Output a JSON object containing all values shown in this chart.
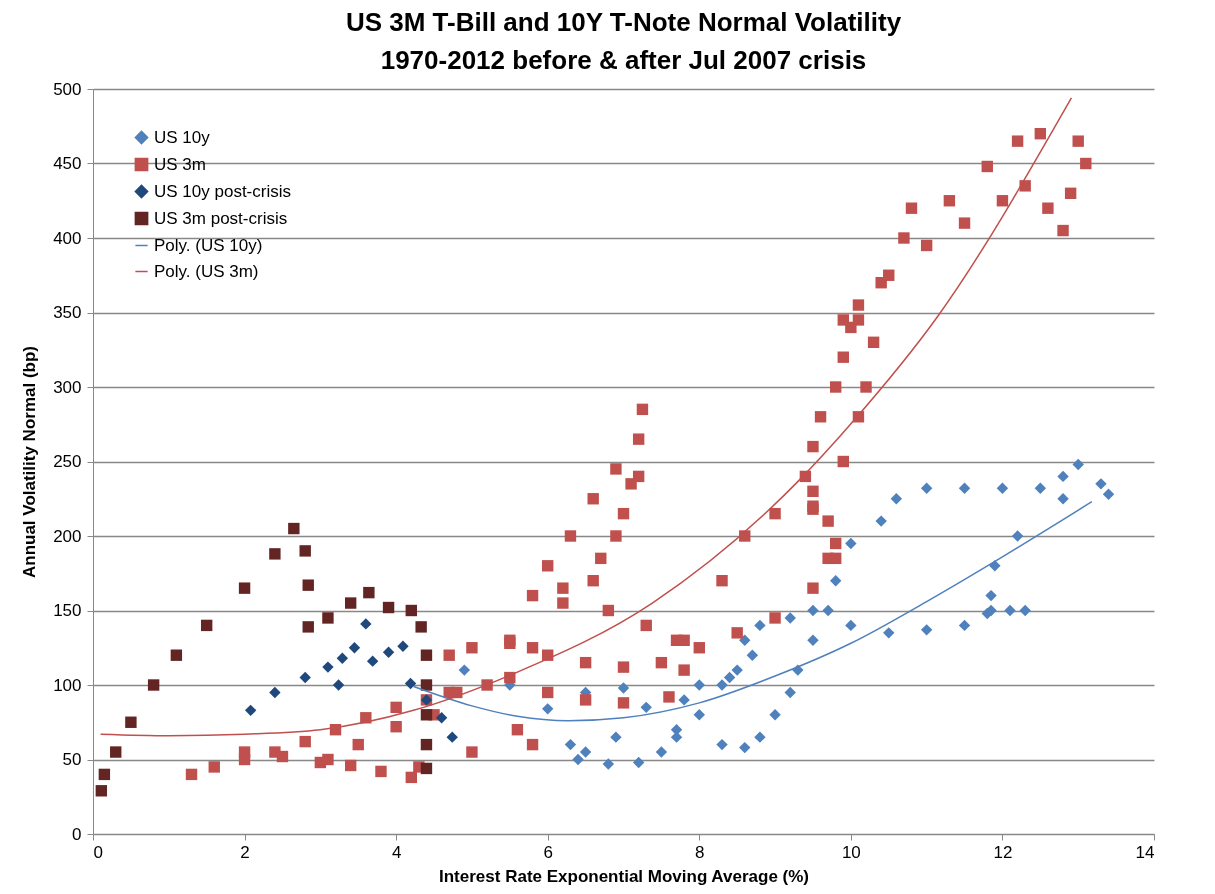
{
  "chart_data": {
    "type": "scatter",
    "title": "US 3M T-Bill and 10Y T-Note Normal Volatility\n1970-2012 before & after Jul 2007 crisis",
    "xlabel": "Interest Rate Exponential Moving Average (%)",
    "ylabel": "Annual Volatility Normal (bp)",
    "xlim": [
      0,
      14
    ],
    "xticks": [
      0,
      2,
      4,
      6,
      8,
      10,
      12,
      14
    ],
    "ylim": [
      0,
      500
    ],
    "yticks": [
      0,
      50,
      100,
      150,
      200,
      250,
      300,
      350,
      400,
      450,
      500
    ],
    "grid": "y",
    "legend": "top left",
    "series": [
      {
        "name": "US 10y",
        "color": "#4f81bd",
        "marker": "diamond",
        "x": [
          4.9,
          5.5,
          6,
          6.5,
          7,
          7.3,
          6.9,
          6.5,
          6.3,
          6.4,
          6.8,
          7.2,
          7.5,
          7.7,
          7.8,
          8,
          8.3,
          8.6,
          8.8,
          9,
          9.2,
          9.3,
          9.5,
          9.7,
          10,
          10.5,
          11,
          11.5,
          11.8,
          12.1,
          12.3,
          8.6,
          8.8,
          9.2,
          9.5,
          9.8,
          10,
          10.4,
          10.6,
          11,
          11.5,
          12,
          12.5,
          12.8,
          13,
          13.3,
          13.4,
          12.8,
          12.2,
          11.9,
          11.85,
          11.85,
          8.3,
          8.5,
          8.7,
          7.7,
          8,
          8.4
        ],
        "values": [
          110,
          100,
          84,
          95,
          98,
          85,
          65,
          55,
          60,
          50,
          47,
          48,
          55,
          65,
          90,
          80,
          60,
          58,
          65,
          80,
          95,
          110,
          130,
          150,
          140,
          135,
          137,
          140,
          148,
          150,
          150,
          130,
          140,
          145,
          150,
          170,
          195,
          210,
          225,
          232,
          232,
          232,
          232,
          240,
          248,
          235,
          228,
          225,
          200,
          180,
          160,
          150,
          100,
          110,
          120,
          70,
          100,
          105
        ]
      },
      {
        "name": "US 3m",
        "color": "#c0504d",
        "marker": "square",
        "x": [
          1.3,
          1.6,
          2,
          2.4,
          2.8,
          3.2,
          3.6,
          4,
          4.4,
          4.8,
          2,
          2.5,
          3,
          3.4,
          3.8,
          4.2,
          4.3,
          3.1,
          3.5,
          4,
          4.5,
          4.7,
          5,
          5.5,
          5.8,
          6,
          6.5,
          7,
          7.5,
          8,
          8.5,
          9,
          9.5,
          9.8,
          4.7,
          5.2,
          5.5,
          6,
          6.5,
          7,
          7.6,
          7.8,
          7.7,
          5.5,
          5.8,
          6,
          6.3,
          6.6,
          6.9,
          7.2,
          7.25,
          7.2,
          7.1,
          7,
          6.9,
          6.7,
          6.6,
          6.2,
          6.2,
          6.8,
          7.3,
          7.8,
          5,
          5.6,
          5.8,
          8.3,
          8.6,
          9,
          9.5,
          9.7,
          9.8,
          9.7,
          9.5,
          9.4,
          9.5,
          9.6,
          9.8,
          9.9,
          10,
          10.1,
          10.5,
          11,
          11.5,
          12,
          12.3,
          12.6,
          12.8,
          12.9,
          13.1,
          13,
          12.5,
          12.2,
          11.8,
          11.3,
          10.8,
          10.7,
          10.4,
          10.1,
          9.9,
          10.3,
          10.2,
          10.1,
          9.9,
          9.5
        ],
        "values": [
          40,
          45,
          50,
          55,
          62,
          70,
          78,
          85,
          90,
          95,
          55,
          52,
          48,
          46,
          42,
          38,
          45,
          50,
          60,
          72,
          80,
          120,
          125,
          128,
          125,
          120,
          115,
          112,
          115,
          125,
          135,
          145,
          165,
          185,
          95,
          100,
          105,
          95,
          90,
          88,
          92,
          110,
          130,
          130,
          160,
          180,
          200,
          225,
          245,
          265,
          285,
          240,
          235,
          215,
          200,
          185,
          170,
          165,
          155,
          150,
          140,
          130,
          55,
          70,
          60,
          170,
          200,
          215,
          218,
          210,
          195,
          185,
          220,
          240,
          260,
          280,
          300,
          320,
          340,
          355,
          375,
          395,
          410,
          425,
          435,
          420,
          405,
          430,
          450,
          465,
          470,
          465,
          448,
          425,
          420,
          400,
          370,
          345,
          345,
          330,
          300,
          280,
          250,
          230
        ]
      },
      {
        "name": "US 10y post-crisis",
        "color": "#1f497d",
        "marker": "diamond",
        "x": [
          2.08,
          2.4,
          2.8,
          3.1,
          3.29,
          3.24,
          3.45,
          3.6,
          3.69,
          3.9,
          4.09,
          4.19,
          4.4,
          4.6,
          4.74
        ],
        "values": [
          83,
          95,
          105,
          112,
          118,
          100,
          125,
          141,
          116,
          122,
          126,
          101,
          90,
          78,
          65
        ]
      },
      {
        "name": "US 3m post-crisis",
        "color": "#632523",
        "marker": "square",
        "x": [
          0.11,
          0.15,
          0.3,
          0.5,
          0.8,
          1.1,
          1.5,
          2,
          2.4,
          2.65,
          2.8,
          2.84,
          2.84,
          3.1,
          3.4,
          3.64,
          3.9,
          4.2,
          4.33,
          4.4,
          4.4,
          4.4,
          4.4,
          4.4
        ],
        "values": [
          29,
          40,
          55,
          75,
          100,
          120,
          140,
          165,
          188,
          205,
          190,
          167,
          139,
          145,
          155,
          162,
          152,
          150,
          139,
          120,
          100,
          80,
          60,
          44
        ]
      },
      {
        "name": "Poly. (US 10y)",
        "type": "line",
        "color": "#4f81bd",
        "marker": "none",
        "x": [
          4.23,
          5,
          5.6,
          6.27,
          7,
          8,
          9,
          10,
          11,
          12,
          13.18
        ],
        "values": [
          99,
          86,
          79,
          76,
          78,
          88,
          106,
          128,
          156,
          186,
          223
        ]
      },
      {
        "name": "Poly. (US 3m)",
        "type": "line",
        "color": "#c0504d",
        "marker": "none",
        "x": [
          0.1,
          1,
          2,
          3,
          4.23,
          5.57,
          7.38,
          9.29,
          10.03,
          11.14,
          12.91
        ],
        "values": [
          67,
          66,
          67,
          70,
          83,
          108,
          155,
          236,
          277,
          347,
          494
        ]
      }
    ]
  }
}
